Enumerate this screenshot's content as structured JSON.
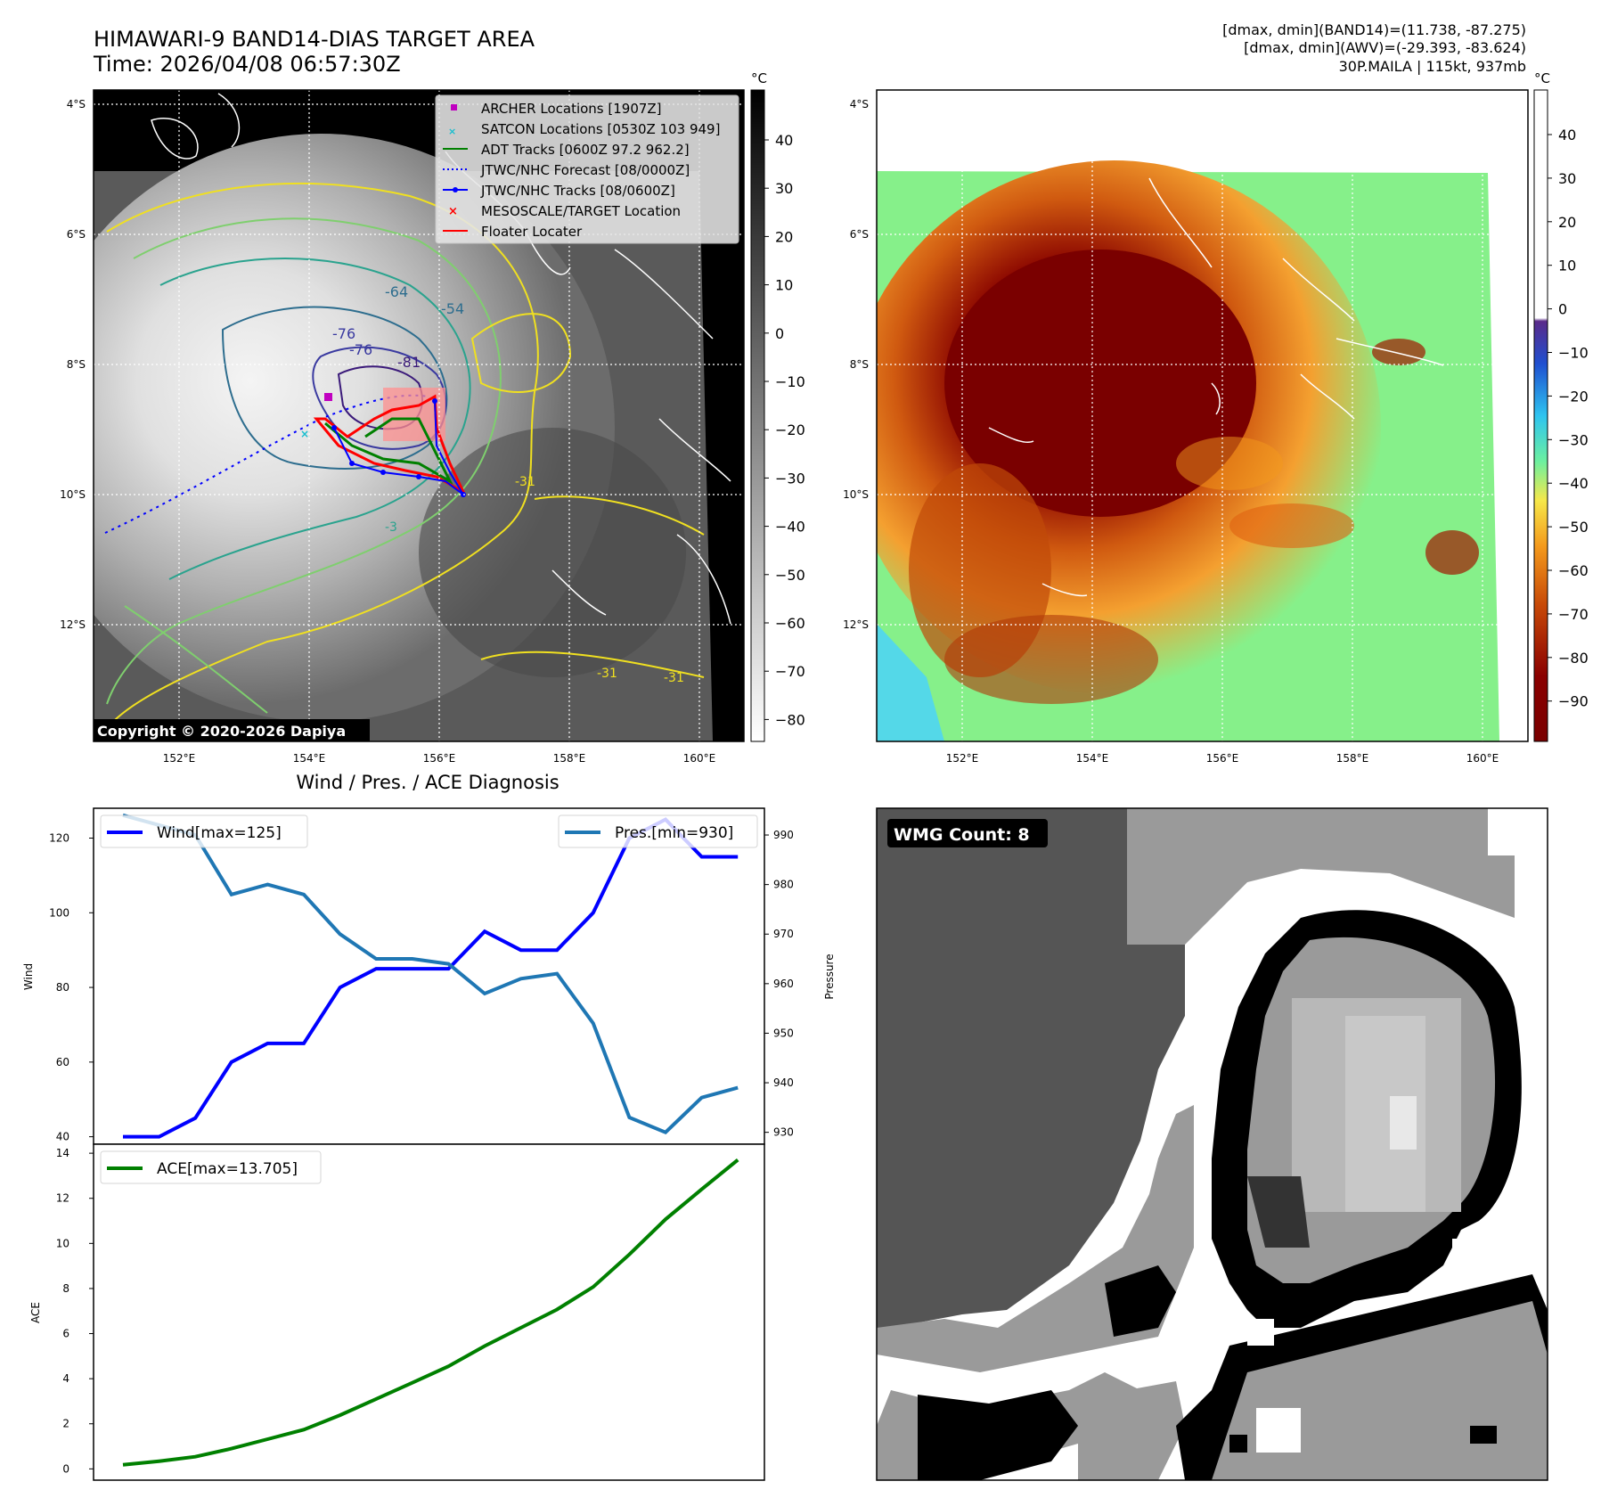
{
  "title": {
    "line1": "HIMAWARI-9 BAND14-DIAS TARGET AREA",
    "line2": "Time: 2026/04/08 06:57:30Z"
  },
  "info": {
    "line1": "[dmax, dmin](BAND14)=(11.738, -87.275)",
    "line2": "[dmax, dmin](AWV)=(-29.393, -83.624)",
    "line3": "30P.MAILA | 115kt, 937mb"
  },
  "map_axes": {
    "lat_labels": [
      "4°S",
      "6°S",
      "8°S",
      "10°S",
      "12°S"
    ],
    "lon_labels": [
      "152°E",
      "154°E",
      "156°E",
      "158°E",
      "160°E"
    ]
  },
  "legend": [
    {
      "label": "ARCHER Locations [1907Z]",
      "color": "#c000c0",
      "marker": "square"
    },
    {
      "label": "SATCON Locations [0530Z 103 949]",
      "color": "#17becf",
      "marker": "x"
    },
    {
      "label": "ADT Tracks [0600Z 97.2 962.2]",
      "color": "#008000",
      "marker": "line"
    },
    {
      "label": "JTWC/NHC Forecast [08/0000Z]",
      "color": "#0000ff",
      "marker": "dotted"
    },
    {
      "label": "JTWC/NHC Tracks [08/0600Z]",
      "color": "#0000ff",
      "marker": "line-dot"
    },
    {
      "label": "MESOSCALE/TARGET Location",
      "color": "#ff0000",
      "marker": "x"
    },
    {
      "label": "Floater Locater",
      "color": "#ff0000",
      "marker": "line"
    }
  ],
  "contour_labels": [
    "-64",
    "-54",
    "-76",
    "-76",
    "-81",
    "-31",
    "-31",
    "-31",
    "-3"
  ],
  "copyright": "Copyright © 2020-2026 Dapiya",
  "cbar1": {
    "unit": "°C",
    "ticks": [
      "40",
      "30",
      "20",
      "10",
      "0",
      "−10",
      "−20",
      "−30",
      "−40",
      "−50",
      "−60",
      "−70",
      "−80"
    ]
  },
  "cbar2": {
    "unit": "°C",
    "ticks": [
      "40",
      "30",
      "20",
      "10",
      "0",
      "−10",
      "−20",
      "−30",
      "−40",
      "−50",
      "−60",
      "−70",
      "−80",
      "−90"
    ]
  },
  "diag_title": "Wind / Pres. / ACE Diagnosis",
  "wmg_label": "WMG Count: 8",
  "colors": {
    "wind": "#0000ff",
    "pressure": "#1f77b4",
    "ace": "#008000"
  },
  "chart_data": [
    {
      "type": "line",
      "title": "Wind / Pres. / ACE Diagnosis",
      "x": [
        0,
        1,
        2,
        3,
        4,
        5,
        6,
        7,
        8,
        9,
        10,
        11,
        12,
        13,
        14,
        15,
        16,
        17
      ],
      "series": [
        {
          "name": "Wind[max=125]",
          "axis": "left",
          "values": [
            40,
            40,
            45,
            60,
            65,
            65,
            80,
            85,
            85,
            85,
            95,
            90,
            90,
            100,
            120,
            125,
            115,
            115
          ]
        },
        {
          "name": "Pres.[min=930]",
          "axis": "right",
          "values": [
            994,
            992,
            990,
            978,
            980,
            978,
            970,
            965,
            965,
            964,
            958,
            961,
            962,
            952,
            933,
            930,
            937,
            939
          ]
        }
      ],
      "ylabel": "Wind",
      "ylabel_right": "Pressure",
      "ylim": [
        38,
        128
      ],
      "ylim_right": [
        927.6,
        995.4
      ],
      "yticks": [
        40,
        60,
        80,
        100,
        120
      ],
      "yticks_right": [
        930,
        940,
        950,
        960,
        970,
        980,
        990
      ],
      "grid": false
    },
    {
      "type": "line",
      "x": [
        0,
        1,
        2,
        3,
        4,
        5,
        6,
        7,
        8,
        9,
        10,
        11,
        12,
        13,
        14,
        15,
        16,
        17
      ],
      "series": [
        {
          "name": "ACE[max=13.705]",
          "values": [
            0.18,
            0.34,
            0.54,
            0.9,
            1.32,
            1.74,
            2.38,
            3.1,
            3.82,
            4.55,
            5.45,
            6.26,
            7.07,
            8.07,
            9.51,
            11.07,
            12.4,
            13.705
          ]
        }
      ],
      "ylabel": "ACE",
      "ylim": [
        -0.5,
        14.4
      ],
      "yticks": [
        0,
        2,
        4,
        6,
        8,
        10,
        12,
        14
      ],
      "grid": false
    }
  ]
}
